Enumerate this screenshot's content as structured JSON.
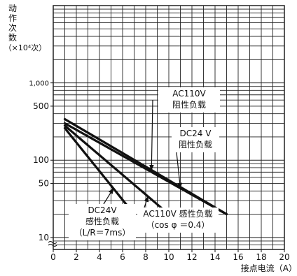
{
  "chart_data": {
    "type": "line",
    "ylabel": "动作次数（×10⁴次）",
    "xlabel": "接点电流（A）",
    "x_ticks": [
      0,
      2,
      4,
      6,
      8,
      10,
      12,
      14,
      16,
      18,
      20
    ],
    "y_ticks": [
      10,
      50,
      100,
      500,
      1000
    ],
    "y_tick_labels": [
      "10",
      "50",
      "100",
      "500",
      "1,000"
    ],
    "x_range": [
      0,
      20
    ],
    "y_range": [
      7,
      10000
    ],
    "y_scale": "log",
    "grid": true,
    "series": [
      {
        "key": "ac110r",
        "x": [
          1,
          15
        ],
        "y": [
          340,
          20
        ]
      },
      {
        "key": "dc24r",
        "x": [
          1,
          15
        ],
        "y": [
          300,
          20
        ]
      },
      {
        "key": "ac110i",
        "x": [
          1,
          10
        ],
        "y": [
          280,
          20
        ]
      },
      {
        "key": "dc24i",
        "x": [
          1,
          7
        ],
        "y": [
          260,
          20
        ]
      }
    ],
    "annotations": [
      {
        "key": "ac110r",
        "lines": [
          "AC110V",
          "阻性负载"
        ]
      },
      {
        "key": "dc24r",
        "lines": [
          "DC24 V",
          "阻性负载"
        ]
      },
      {
        "key": "dc24i",
        "lines": [
          "DC24V",
          "感性负载",
          "（L/R＝7ms）"
        ]
      },
      {
        "key": "ac110i",
        "lines": [
          "AC110V 感性负载",
          "（cos φ ＝0.4）"
        ]
      }
    ]
  }
}
